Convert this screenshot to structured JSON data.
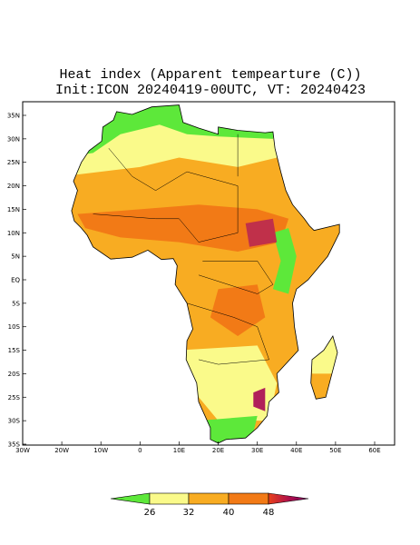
{
  "title": {
    "line1": "Heat index (Apparent tempearture (C))",
    "line2": "Init:ICON 20240419-00UTC, VT: 20240423"
  },
  "axes": {
    "lat_labels": [
      "35N",
      "30N",
      "25N",
      "20N",
      "15N",
      "10N",
      "5N",
      "EQ",
      "5S",
      "10S",
      "15S",
      "20S",
      "25S",
      "30S",
      "35S"
    ],
    "lon_labels": [
      "30W",
      "20W",
      "10W",
      "0",
      "10E",
      "20E",
      "30E",
      "40E",
      "50E",
      "60E"
    ]
  },
  "colorbar": {
    "labels": [
      "26",
      "32",
      "40",
      "48"
    ]
  }
}
